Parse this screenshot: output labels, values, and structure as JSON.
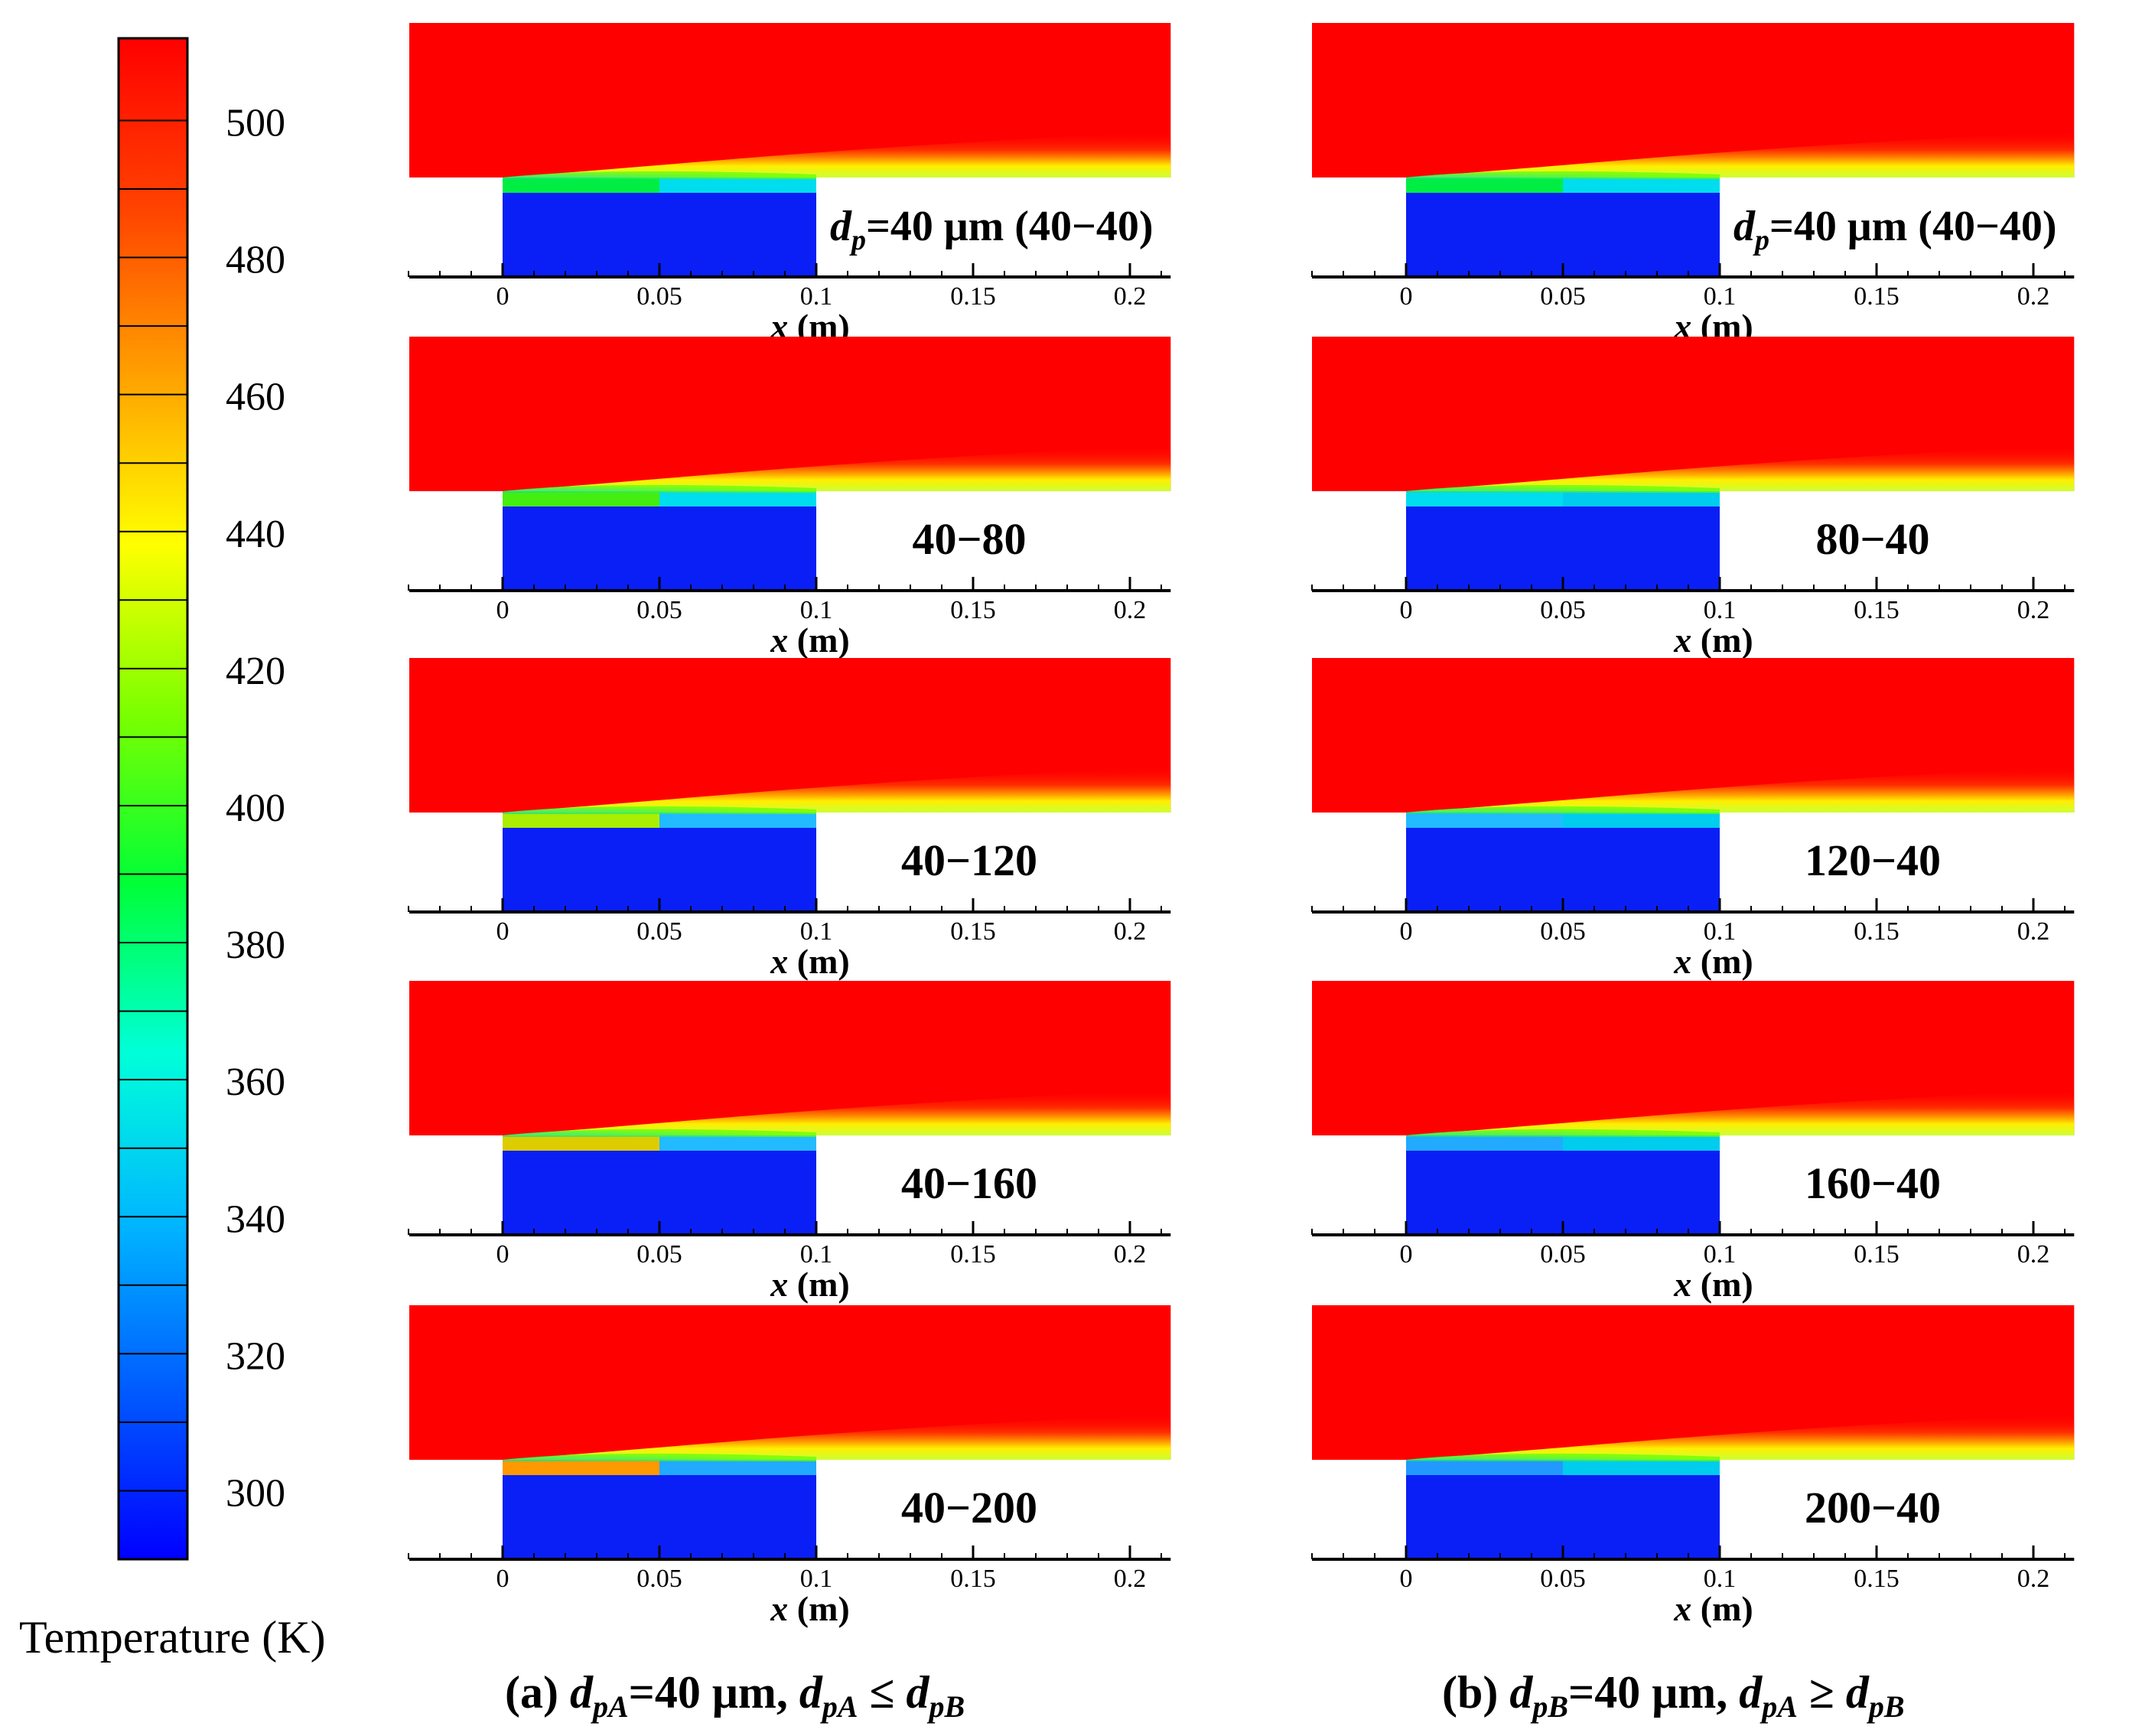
{
  "colorbar": {
    "label": "Temperature (K)",
    "ticks": [
      500,
      480,
      460,
      440,
      420,
      400,
      380,
      360,
      340,
      320,
      300
    ],
    "range": [
      290,
      512
    ],
    "colors": [
      "#0000ff",
      "#005bff",
      "#00b7ff",
      "#00ffd9",
      "#00ff37",
      "#7bff00",
      "#ffff00",
      "#ffa100",
      "#ff4200",
      "#ff0000"
    ]
  },
  "axis": {
    "xlabel_italic": "x",
    "xlabel_unit": " (m)",
    "tick_labels": [
      "0",
      "0.05",
      "0.1",
      "0.15",
      "0.2"
    ],
    "tick_values": [
      0,
      0.05,
      0.1,
      0.15,
      0.2
    ],
    "xlim": [
      -0.03,
      0.213
    ]
  },
  "columns": [
    {
      "caption": {
        "prefix": "(a) ",
        "d1": "d",
        "d1_sub": "pA",
        "mid1": "=40 μm, ",
        "d2": "d",
        "d2_sub": "pA",
        "rel": " ≤ ",
        "d3": "d",
        "d3_sub": "pB"
      },
      "panels": [
        {
          "label_first": {
            "d": "d",
            "sub": "p",
            "rest": "=40 μm (40−40)"
          },
          "split": 0.05,
          "upstream": "#00ee44",
          "downstream": "#00ddee"
        },
        {
          "label": "40−80",
          "upstream": "#44ee11",
          "downstream": "#00ddee"
        },
        {
          "label": "40−120",
          "upstream": "#aaee00",
          "downstream": "#22bbff"
        },
        {
          "label": "40−160",
          "upstream": "#ddcc00",
          "downstream": "#22bbff"
        },
        {
          "label": "40−200",
          "upstream": "#ff9900",
          "downstream": "#22aaff"
        }
      ]
    },
    {
      "caption": {
        "prefix": "(b) ",
        "d1": "d",
        "d1_sub": "pB",
        "mid1": "=40 μm, ",
        "d2": "d",
        "d2_sub": "pA",
        "rel": " ≥ ",
        "d3": "d",
        "d3_sub": "pB"
      },
      "panels": [
        {
          "label_first": {
            "d": "d",
            "sub": "p",
            "rest": "=40 μm (40−40)"
          },
          "upstream": "#00ee44",
          "downstream": "#00ddee"
        },
        {
          "label": "80−40",
          "upstream": "#00ddee",
          "downstream": "#00ccee"
        },
        {
          "label": "120−40",
          "upstream": "#22bbff",
          "downstream": "#00ccee"
        },
        {
          "label": "160−40",
          "upstream": "#22aaff",
          "downstream": "#00ccee"
        },
        {
          "label": "200−40",
          "upstream": "#2299ff",
          "downstream": "#00ccee"
        }
      ]
    }
  ]
}
